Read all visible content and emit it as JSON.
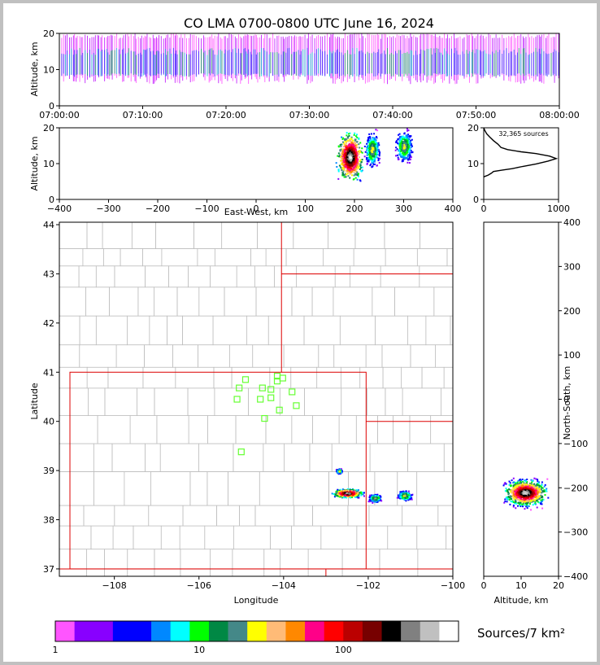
{
  "chart_data": {
    "title": "CO LMA 0700-0800 UTC June 16, 2024",
    "time_height": {
      "type": "scatter",
      "ylabel": "Altitude, km",
      "xlim": [
        "07:00:00",
        "08:00:00"
      ],
      "ylim": [
        0,
        20
      ],
      "x_ticks": [
        "07:00:00",
        "07:10:00",
        "07:20:00",
        "07:30:00",
        "07:40:00",
        "07:50:00",
        "08:00:00"
      ],
      "y_ticks": [
        0,
        10,
        20
      ],
      "altitude_band_km": [
        6,
        20
      ],
      "dense_band_km": [
        8,
        16
      ]
    },
    "ew_altitude": {
      "type": "scatter",
      "xlabel": "East-West, km",
      "ylabel": "Altitude, km",
      "xlim": [
        -400,
        400
      ],
      "ylim": [
        0,
        20
      ],
      "x_ticks": [
        -400,
        -300,
        -200,
        -100,
        0,
        100,
        200,
        300,
        400
      ],
      "y_ticks": [
        0,
        10,
        20
      ],
      "clusters": [
        {
          "x_min": 155,
          "x_max": 215,
          "z_min": 5,
          "z_max": 20,
          "core_x": 190,
          "core_z": 12
        },
        {
          "x_min": 215,
          "x_max": 250,
          "z_min": 9,
          "z_max": 20,
          "core_x": 235,
          "core_z": 14
        },
        {
          "x_min": 280,
          "x_max": 320,
          "z_min": 10,
          "z_max": 20,
          "core_x": 300,
          "core_z": 15
        }
      ]
    },
    "altitude_histogram": {
      "type": "line",
      "annotation": "32,365 sources",
      "xlim": [
        0,
        1000
      ],
      "ylim": [
        0,
        20
      ],
      "x_ticks": [
        0,
        1000
      ],
      "y_ticks": [
        0,
        10,
        20
      ],
      "profile": [
        {
          "count": 0,
          "alt": 6.3
        },
        {
          "count": 60,
          "alt": 6.8
        },
        {
          "count": 100,
          "alt": 7.3
        },
        {
          "count": 130,
          "alt": 7.8
        },
        {
          "count": 250,
          "alt": 8.2
        },
        {
          "count": 380,
          "alt": 8.6
        },
        {
          "count": 520,
          "alt": 9.2
        },
        {
          "count": 700,
          "alt": 9.9
        },
        {
          "count": 860,
          "alt": 10.7
        },
        {
          "count": 970,
          "alt": 11.4
        },
        {
          "count": 880,
          "alt": 12.1
        },
        {
          "count": 700,
          "alt": 12.8
        },
        {
          "count": 500,
          "alt": 13.3
        },
        {
          "count": 320,
          "alt": 13.9
        },
        {
          "count": 230,
          "alt": 14.5
        },
        {
          "count": 190,
          "alt": 15.4
        },
        {
          "count": 130,
          "alt": 16.4
        },
        {
          "count": 80,
          "alt": 17.4
        },
        {
          "count": 40,
          "alt": 18.3
        },
        {
          "count": 15,
          "alt": 19.2
        },
        {
          "count": 0,
          "alt": 20
        }
      ]
    },
    "map": {
      "type": "scatter",
      "xlabel": "Longitude",
      "ylabel": "Latitude",
      "xlim": [
        -109.3,
        -100.0
      ],
      "ylim": [
        36.85,
        44.05
      ],
      "x_ticks": [
        -108,
        -106,
        -104,
        -102,
        -100
      ],
      "y_ticks": [
        37,
        38,
        39,
        40,
        41,
        42,
        43,
        44
      ],
      "stations": [
        [
          -104.9,
          40.85
        ],
        [
          -104.15,
          40.92
        ],
        [
          -104.02,
          40.88
        ],
        [
          -104.15,
          40.82
        ],
        [
          -105.05,
          40.68
        ],
        [
          -104.5,
          40.68
        ],
        [
          -104.3,
          40.65
        ],
        [
          -103.8,
          40.6
        ],
        [
          -105.1,
          40.45
        ],
        [
          -104.55,
          40.45
        ],
        [
          -104.3,
          40.48
        ],
        [
          -103.7,
          40.32
        ],
        [
          -104.1,
          40.23
        ],
        [
          -104.45,
          40.06
        ],
        [
          -105.0,
          39.38
        ]
      ],
      "storms": [
        {
          "lon": -102.5,
          "lat": 38.55,
          "rx": 0.4,
          "ry": 0.1,
          "intense": true
        },
        {
          "lon": -101.85,
          "lat": 38.45,
          "rx": 0.18,
          "ry": 0.1,
          "intense": false
        },
        {
          "lon": -101.15,
          "lat": 38.5,
          "rx": 0.2,
          "ry": 0.12,
          "intense": false
        },
        {
          "lon": -102.7,
          "lat": 39.0,
          "rx": 0.08,
          "ry": 0.06,
          "intense": false
        }
      ]
    },
    "ns_altitude": {
      "type": "scatter",
      "xlabel": "Altitude, km",
      "ylabel": "North-South, km",
      "xlim": [
        0,
        20
      ],
      "ylim": [
        -400,
        400
      ],
      "x_ticks": [
        0,
        10,
        20
      ],
      "y_ticks": [
        -400,
        -300,
        -200,
        -100,
        0,
        100,
        200,
        300,
        400
      ],
      "band": {
        "y_min": -250,
        "y_max": -145,
        "x_min": 5,
        "x_max": 20,
        "core_alt": 11,
        "core_ns": -210
      }
    },
    "colorbar": {
      "label": "Sources/7 km²",
      "tick_labels": [
        "1",
        "10",
        "100"
      ],
      "colors": [
        "#ff55ff",
        "#8800ff",
        "#8800ff",
        "#0000ff",
        "#0000ff",
        "#0088ff",
        "#00ffff",
        "#00ff00",
        "#008844",
        "#448888",
        "#ffff00",
        "#ffbb77",
        "#ff8800",
        "#ff0088",
        "#ff0000",
        "#bb0000",
        "#770000",
        "#000000",
        "#808080",
        "#c0c0c0",
        "#ffffff"
      ]
    }
  }
}
